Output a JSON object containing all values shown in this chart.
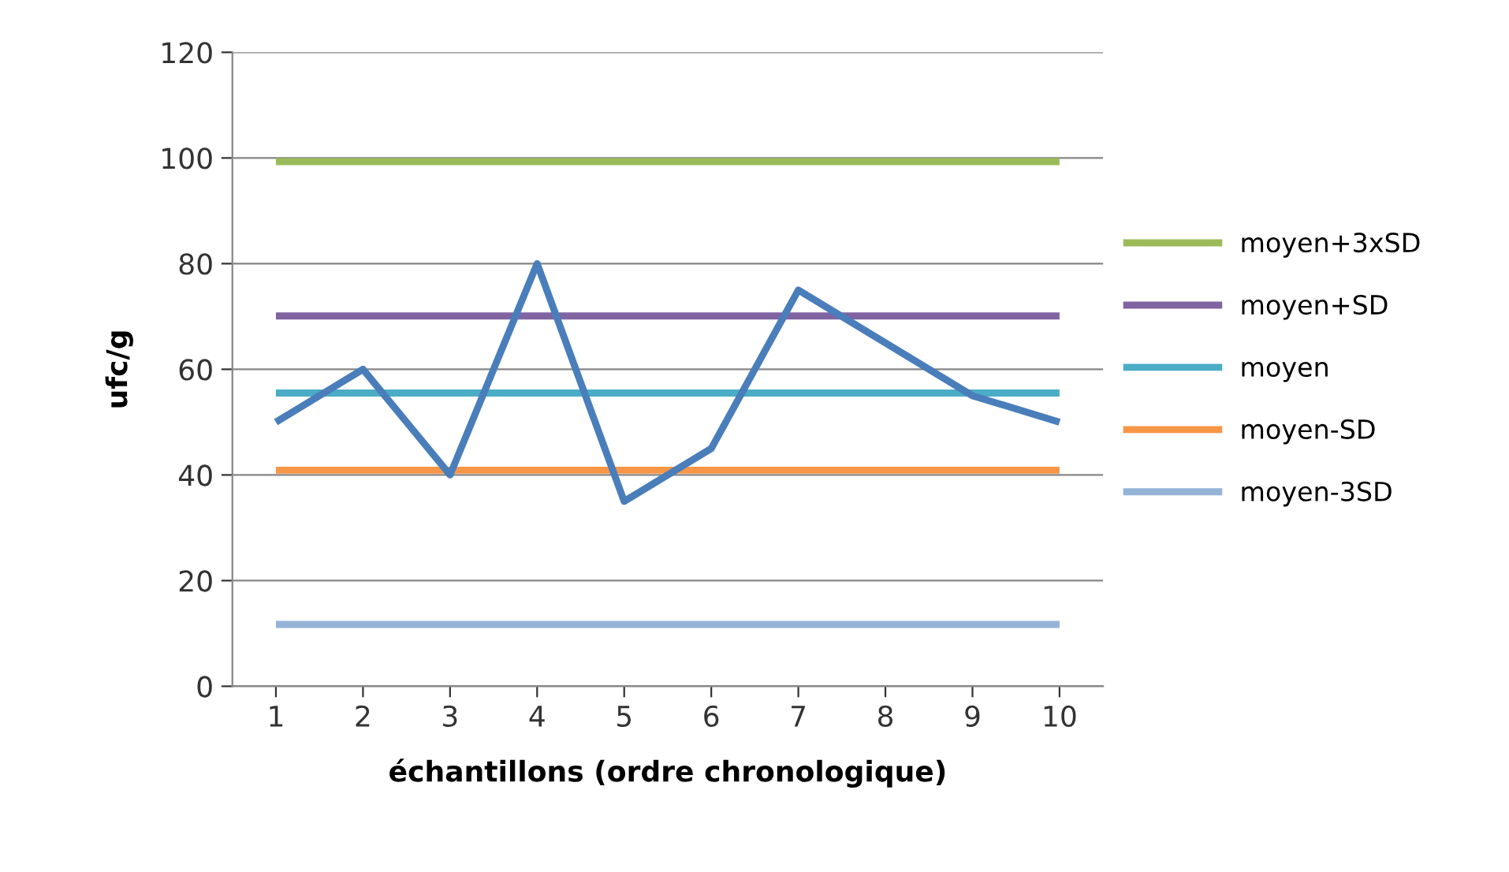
{
  "chart_data": {
    "type": "line",
    "xlabel": "échantillons (ordre chronologique)",
    "ylabel": "ufc/g",
    "categories": [
      "1",
      "2",
      "3",
      "4",
      "5",
      "6",
      "7",
      "8",
      "9",
      "10"
    ],
    "series": [
      {
        "color": "#4a7ebb",
        "values": [
          50,
          60,
          40,
          80,
          35,
          45,
          75,
          65,
          55,
          50
        ]
      },
      {
        "name": "moyen+3xSD",
        "color": "#9bbb59",
        "values": [
          99.3,
          99.3,
          99.3,
          99.3,
          99.3,
          99.3,
          99.3,
          99.3,
          99.3,
          99.3
        ]
      },
      {
        "name": "moyen+SD",
        "color": "#8064a2",
        "values": [
          70.1,
          70.1,
          70.1,
          70.1,
          70.1,
          70.1,
          70.1,
          70.1,
          70.1,
          70.1
        ]
      },
      {
        "name": "moyen",
        "color": "#4bacc6",
        "values": [
          55.5,
          55.5,
          55.5,
          55.5,
          55.5,
          55.5,
          55.5,
          55.5,
          55.5,
          55.5
        ]
      },
      {
        "name": "moyen-SD",
        "color": "#f79646",
        "values": [
          40.9,
          40.9,
          40.9,
          40.9,
          40.9,
          40.9,
          40.9,
          40.9,
          40.9,
          40.9
        ]
      },
      {
        "name": "moyen-3SD",
        "color": "#95b3d7",
        "values": [
          11.7,
          11.7,
          11.7,
          11.7,
          11.7,
          11.7,
          11.7,
          11.7,
          11.7,
          11.7
        ]
      }
    ],
    "ylim": [
      0,
      120
    ],
    "yticks": [
      0,
      20,
      40,
      60,
      80,
      100,
      120
    ],
    "grid": "y",
    "legend": "right",
    "marker": "none",
    "line_style": "solid"
  }
}
